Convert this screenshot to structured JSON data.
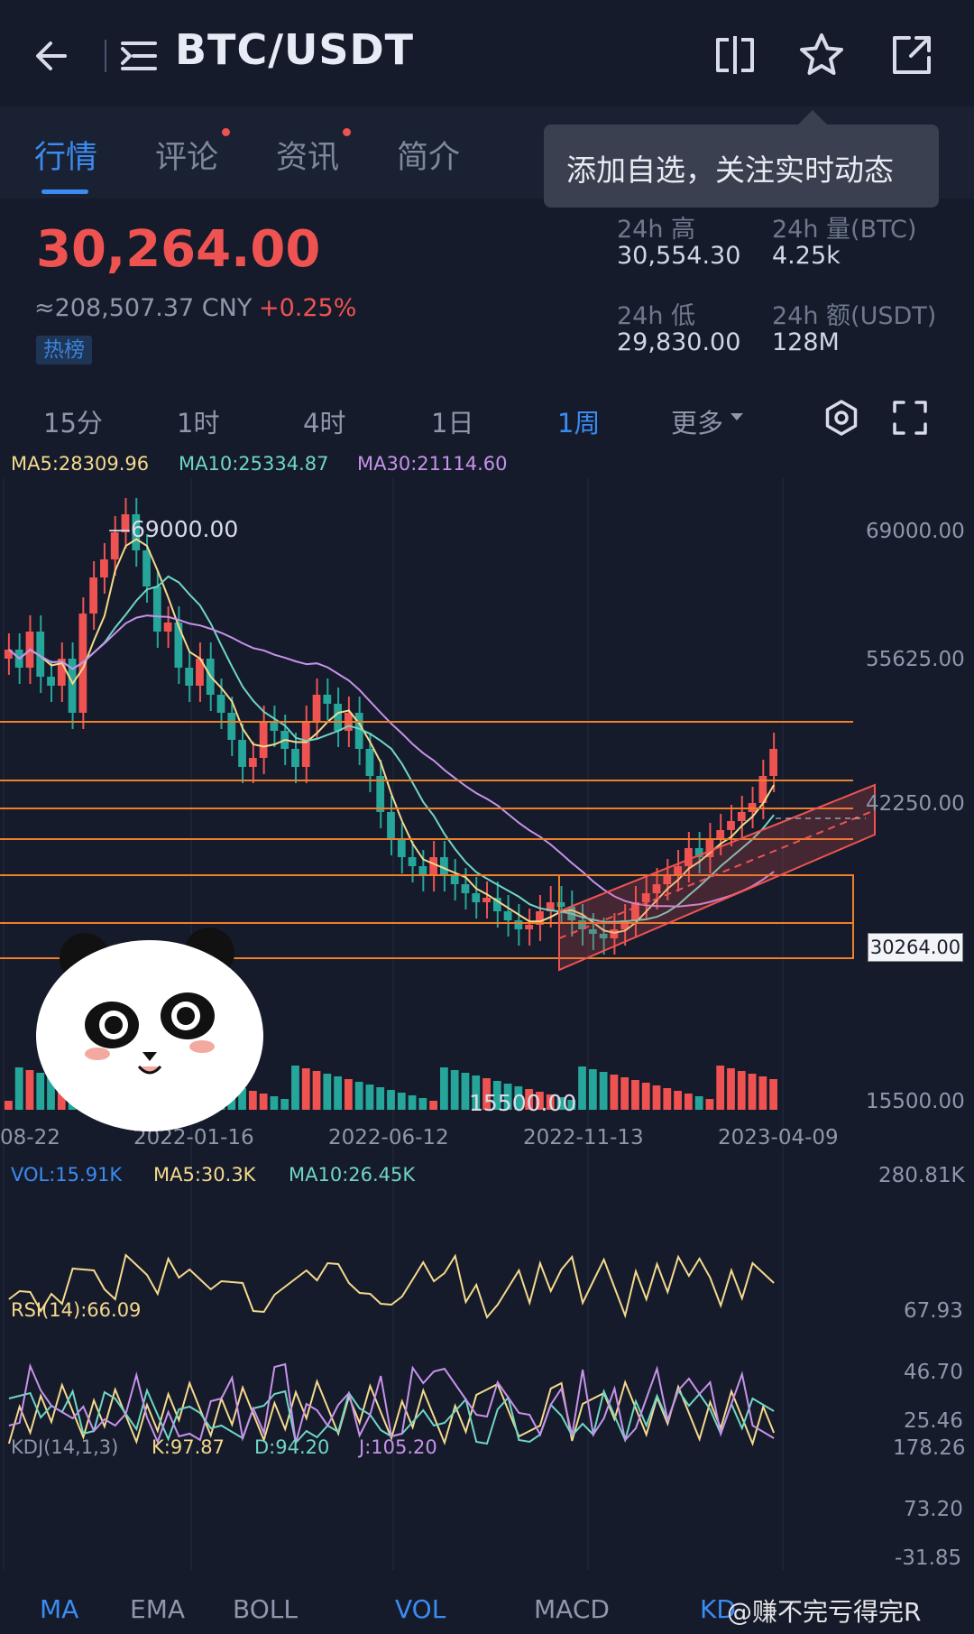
{
  "header": {
    "title": "BTC/USDT",
    "icons": [
      "back-icon",
      "menu-icon",
      "split-screen-icon",
      "star-icon",
      "share-icon"
    ]
  },
  "tabs": [
    {
      "label": "行情",
      "active": true,
      "dot": false
    },
    {
      "label": "评论",
      "active": false,
      "dot": true
    },
    {
      "label": "资讯",
      "active": false,
      "dot": true
    },
    {
      "label": "简介",
      "active": false,
      "dot": false
    }
  ],
  "tooltip": {
    "text": "添加自选，关注实时动态"
  },
  "price": {
    "last": "30,264.00",
    "cny": "≈208,507.37 CNY",
    "change": "+0.25%",
    "badge": "热榜"
  },
  "stats": {
    "high_label": "24h 高",
    "high_value": "30,554.30",
    "vol_label": "24h 量(BTC)",
    "vol_value": "4.25k",
    "low_label": "24h 低",
    "low_value": "29,830.00",
    "amount_label": "24h 额(USDT)",
    "amount_value": "128M"
  },
  "periods": [
    {
      "label": "15分",
      "active": false
    },
    {
      "label": "1时",
      "active": false
    },
    {
      "label": "4时",
      "active": false
    },
    {
      "label": "1日",
      "active": false
    },
    {
      "label": "1周",
      "active": true
    },
    {
      "label": "更多",
      "active": false
    }
  ],
  "ma_legend": {
    "ma5": "MA5:28309.96",
    "ma10": "MA10:25334.87",
    "ma30": "MA30:21114.60"
  },
  "main_chart": {
    "y_ticks": [
      "69000.00",
      "55625.00",
      "42250.00",
      "15500.00"
    ],
    "current_price_tag": "30264.00",
    "high_marker": "69000.00",
    "low_marker": "15500.00",
    "dates": [
      "08-22",
      "2022-01-16",
      "2022-06-12",
      "2022-11-13",
      "2023-04-09"
    ]
  },
  "volume": {
    "vol": "VOL:15.91K",
    "ma5": "MA5:30.3K",
    "ma10": "MA10:26.45K",
    "max": "280.81K"
  },
  "rsi": {
    "label": "RSI(14):66.09",
    "ticks": [
      "67.93",
      "46.70",
      "25.46"
    ]
  },
  "kdj": {
    "label": "KDJ(14,1,3)",
    "k": "K:97.87",
    "d": "D:94.20",
    "j": "J:105.20",
    "ticks": [
      "178.26",
      "73.20",
      "-31.85"
    ]
  },
  "bottom_tabs": [
    {
      "label": "MA",
      "active": true
    },
    {
      "label": "EMA",
      "active": false
    },
    {
      "label": "BOLL",
      "active": false
    },
    {
      "label": "VOL",
      "active": true
    },
    {
      "label": "MACD",
      "active": false
    },
    {
      "label": "KD",
      "active": true
    }
  ],
  "watermark": "@赚不完亏得完R",
  "colors": {
    "background": "#151b2b",
    "up": "#ef5351",
    "down": "#26a69a",
    "accent": "#3b8cf2",
    "ma5": "#f5d98c",
    "ma10": "#6fd6c4",
    "ma30": "#c792ea",
    "support_lines": "#f07f2a"
  }
}
